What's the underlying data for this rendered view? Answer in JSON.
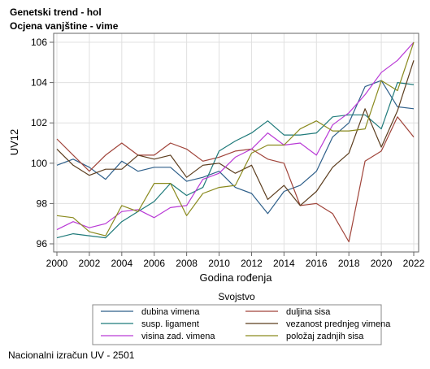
{
  "titles": {
    "line1": "Genetski trend - hol",
    "line2": "Ocjena vanjštine - vime"
  },
  "footnote": "Nacionalni izračun UV - 2501",
  "chart_data": {
    "type": "line",
    "xlabel": "Godina rođenja",
    "ylabel": "UV12",
    "xlim": [
      2000,
      2022
    ],
    "ylim": [
      96,
      106
    ],
    "xticks": [
      "2000",
      "2002",
      "2004",
      "2006",
      "2008",
      "2010",
      "2012",
      "2014",
      "2016",
      "2018",
      "2020",
      "2022"
    ],
    "yticks": [
      "96",
      "98",
      "100",
      "102",
      "104",
      "106"
    ],
    "grid": true,
    "legend_title": "Svojstvo",
    "legend_placement": "bottom",
    "x": [
      2000,
      2001,
      2002,
      2003,
      2004,
      2005,
      2006,
      2007,
      2008,
      2009,
      2010,
      2011,
      2012,
      2013,
      2014,
      2015,
      2016,
      2017,
      2018,
      2019,
      2020,
      2021,
      2022
    ],
    "series": [
      {
        "name": "dubina vimena",
        "color": "#2e5f8a",
        "values": [
          99.9,
          100.2,
          99.8,
          99.2,
          100.1,
          99.6,
          99.8,
          99.8,
          99.1,
          99.3,
          99.6,
          98.8,
          98.5,
          97.5,
          98.6,
          98.9,
          99.6,
          101.3,
          102.0,
          103.8,
          104.1,
          102.8,
          102.7
        ]
      },
      {
        "name": "duljina sisa",
        "color": "#a0443a",
        "values": [
          101.2,
          100.4,
          99.6,
          100.4,
          101.0,
          100.4,
          100.4,
          101.0,
          100.7,
          100.1,
          100.3,
          100.6,
          100.7,
          100.2,
          100.0,
          97.9,
          98.0,
          97.5,
          96.1,
          100.1,
          100.6,
          102.3,
          101.3
        ]
      },
      {
        "name": "susp. ligament",
        "color": "#1f7a7a",
        "values": [
          96.3,
          96.5,
          96.4,
          96.3,
          97.1,
          97.6,
          98.1,
          99.0,
          98.4,
          98.8,
          100.6,
          101.1,
          101.5,
          102.1,
          101.4,
          101.4,
          101.5,
          102.3,
          102.4,
          102.4,
          101.7,
          104.0,
          103.9
        ]
      },
      {
        "name": "vezanost prednjeg vimena",
        "color": "#5c3d1e",
        "values": [
          100.7,
          99.9,
          99.4,
          99.7,
          99.7,
          100.4,
          100.2,
          100.4,
          99.3,
          99.9,
          100.0,
          99.5,
          99.9,
          98.2,
          98.9,
          97.9,
          98.6,
          99.8,
          100.5,
          102.7,
          100.8,
          102.6,
          105.1
        ]
      },
      {
        "name": "visina zad. vimena",
        "color": "#b93ad6",
        "values": [
          96.7,
          97.1,
          96.8,
          97.0,
          97.6,
          97.7,
          97.3,
          97.8,
          97.9,
          99.2,
          99.5,
          100.3,
          100.7,
          101.5,
          100.9,
          101.0,
          100.4,
          101.9,
          102.5,
          103.4,
          104.5,
          105.1,
          106.0
        ]
      },
      {
        "name": "položaj zadnjih sisa",
        "color": "#8a8a1e",
        "values": [
          97.4,
          97.3,
          96.6,
          96.4,
          97.9,
          97.6,
          99.0,
          99.0,
          97.4,
          98.5,
          98.8,
          98.9,
          100.5,
          100.9,
          100.9,
          101.7,
          102.1,
          101.6,
          101.6,
          101.7,
          104.1,
          103.6,
          106.0
        ]
      }
    ]
  }
}
